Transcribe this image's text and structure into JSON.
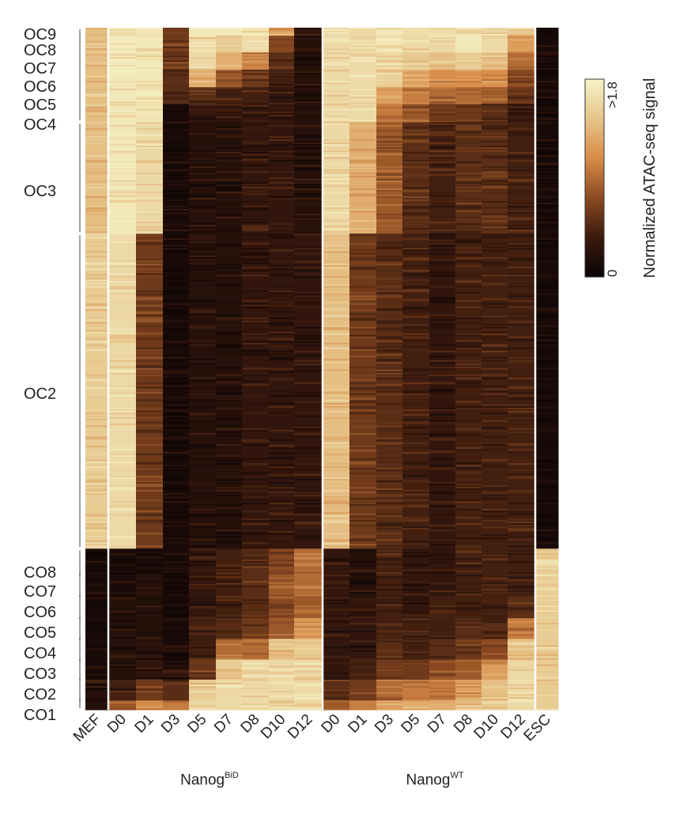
{
  "chart_data": {
    "type": "heatmap",
    "colorbar": {
      "label": "Normalized ATAC-seq signal",
      "max_label": ">1.8",
      "min_label": "0",
      "range": [
        0,
        1.8
      ],
      "colors": [
        "#0b0406",
        "#3a1a0e",
        "#8a4a22",
        "#d98c48",
        "#e6c48a",
        "#f6f4c8"
      ]
    },
    "columns": [
      "MEF",
      "D0",
      "D1",
      "D3",
      "D5",
      "D7",
      "D8",
      "D10",
      "D12",
      "D0",
      "D1",
      "D3",
      "D5",
      "D7",
      "D8",
      "D10",
      "D12",
      "ESC"
    ],
    "column_groups": [
      {
        "label": "Nanog",
        "superscript": "BiD",
        "columns": [
          1,
          8
        ]
      },
      {
        "label": "Nanog",
        "superscript": "WT",
        "columns": [
          9,
          16
        ]
      }
    ],
    "clusters": [
      "OC9",
      "OC8",
      "OC7",
      "OC6",
      "OC5",
      "OC4",
      "OC3",
      "OC2",
      "CO8",
      "CO7",
      "CO6",
      "CO5",
      "CO4",
      "CO3",
      "CO2",
      "CO1"
    ],
    "cluster_fraction": [
      0.012,
      0.025,
      0.026,
      0.026,
      0.025,
      0.027,
      0.167,
      0.471,
      0.039,
      0.032,
      0.033,
      0.031,
      0.031,
      0.03,
      0.031,
      0.014
    ],
    "matrix": [
      [
        1.4,
        1.7,
        1.7,
        0.6,
        1.7,
        1.7,
        1.7,
        1.2,
        0.3,
        1.6,
        1.6,
        1.7,
        1.6,
        1.6,
        1.7,
        1.6,
        1.5,
        0.1
      ],
      [
        1.4,
        1.7,
        1.7,
        0.6,
        1.6,
        1.5,
        1.6,
        0.7,
        0.2,
        1.6,
        1.6,
        1.7,
        1.6,
        1.6,
        1.7,
        1.6,
        1.2,
        0.1
      ],
      [
        1.4,
        1.7,
        1.7,
        0.6,
        1.6,
        1.3,
        1.0,
        0.5,
        0.2,
        1.6,
        1.6,
        1.6,
        1.5,
        1.4,
        1.5,
        1.4,
        0.9,
        0.1
      ],
      [
        1.4,
        1.7,
        1.7,
        0.5,
        1.3,
        0.8,
        0.6,
        0.4,
        0.2,
        1.6,
        1.6,
        1.5,
        1.2,
        1.1,
        1.1,
        1.1,
        0.7,
        0.1
      ],
      [
        1.4,
        1.7,
        1.7,
        0.5,
        0.5,
        0.4,
        0.4,
        0.3,
        0.2,
        1.6,
        1.6,
        1.2,
        1.0,
        0.9,
        0.9,
        0.8,
        0.6,
        0.1
      ],
      [
        1.4,
        1.7,
        1.7,
        0.1,
        0.3,
        0.3,
        0.3,
        0.3,
        0.2,
        1.6,
        1.6,
        1.0,
        0.8,
        0.6,
        0.6,
        0.5,
        0.3,
        0.1
      ],
      [
        1.4,
        1.7,
        1.6,
        0.1,
        0.2,
        0.2,
        0.3,
        0.3,
        0.2,
        1.6,
        1.3,
        0.8,
        0.5,
        0.4,
        0.5,
        0.5,
        0.4,
        0.1
      ],
      [
        1.5,
        1.6,
        0.6,
        0.1,
        0.2,
        0.2,
        0.3,
        0.3,
        0.3,
        1.4,
        0.6,
        0.5,
        0.4,
        0.3,
        0.4,
        0.4,
        0.4,
        0.1
      ],
      [
        0.1,
        0.1,
        0.1,
        0.1,
        0.3,
        0.4,
        0.5,
        0.7,
        0.9,
        0.3,
        0.2,
        0.4,
        0.3,
        0.3,
        0.4,
        0.4,
        0.4,
        1.5
      ],
      [
        0.1,
        0.1,
        0.2,
        0.1,
        0.3,
        0.4,
        0.5,
        0.8,
        0.9,
        0.3,
        0.2,
        0.4,
        0.3,
        0.3,
        0.4,
        0.4,
        0.4,
        1.5
      ],
      [
        0.1,
        0.2,
        0.2,
        0.1,
        0.3,
        0.4,
        0.5,
        0.7,
        0.8,
        0.3,
        0.3,
        0.4,
        0.3,
        0.4,
        0.4,
        0.4,
        0.5,
        1.5
      ],
      [
        0.1,
        0.2,
        0.2,
        0.1,
        0.4,
        0.5,
        0.6,
        0.8,
        1.2,
        0.3,
        0.3,
        0.4,
        0.4,
        0.4,
        0.5,
        0.5,
        1.0,
        1.5
      ],
      [
        0.1,
        0.2,
        0.2,
        0.1,
        0.4,
        0.9,
        0.9,
        1.4,
        1.5,
        0.3,
        0.3,
        0.5,
        0.4,
        0.5,
        0.6,
        0.7,
        1.4,
        1.5
      ],
      [
        0.1,
        0.2,
        0.3,
        0.2,
        0.6,
        1.5,
        1.6,
        1.6,
        1.6,
        0.3,
        0.4,
        0.6,
        0.6,
        0.7,
        0.8,
        1.2,
        1.6,
        1.5
      ],
      [
        0.2,
        0.4,
        0.6,
        0.5,
        1.5,
        1.6,
        1.6,
        1.6,
        1.6,
        0.5,
        0.6,
        0.9,
        1.0,
        1.0,
        1.2,
        1.4,
        1.6,
        1.5
      ],
      [
        0.2,
        0.8,
        1.1,
        1.0,
        1.6,
        1.6,
        1.6,
        1.6,
        1.6,
        0.8,
        1.0,
        1.2,
        1.3,
        1.3,
        1.4,
        1.5,
        1.6,
        1.5
      ]
    ]
  }
}
